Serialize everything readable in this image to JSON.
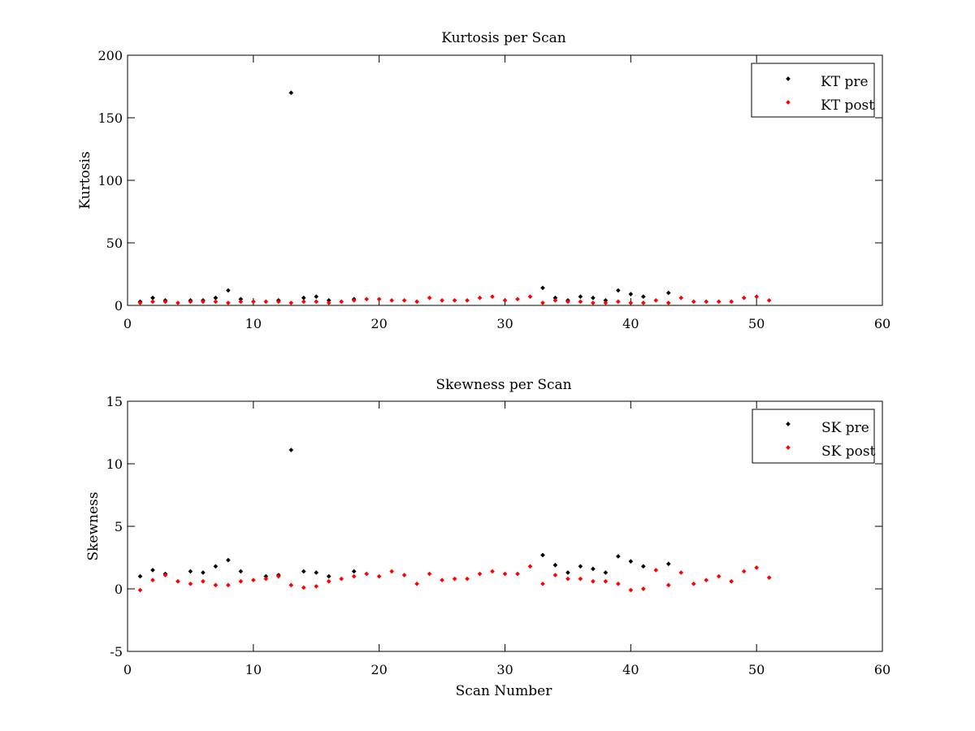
{
  "chart_data": [
    {
      "type": "scatter",
      "title": "Kurtosis per Scan",
      "xlabel": "",
      "ylabel": "Kurtosis",
      "xlim": [
        0,
        60
      ],
      "ylim": [
        0,
        200
      ],
      "xticks": [
        0,
        10,
        20,
        30,
        40,
        50,
        60
      ],
      "yticks": [
        0,
        50,
        100,
        150,
        200
      ],
      "grid": false,
      "legend_position": "top-right",
      "series": [
        {
          "name": "KT pre",
          "color": "#000000",
          "x": [
            1,
            2,
            3,
            5,
            6,
            7,
            8,
            9,
            12,
            13,
            14,
            15,
            16,
            18,
            33,
            34,
            35,
            36,
            37,
            38,
            39,
            40,
            41,
            43
          ],
          "y": [
            3,
            6,
            4,
            4,
            4,
            6,
            12,
            5,
            4,
            170,
            6,
            7,
            4,
            5,
            14,
            6,
            4,
            7,
            6,
            4,
            12,
            9,
            7,
            10
          ]
        },
        {
          "name": "KT post",
          "color": "#ff0000",
          "x": [
            1,
            2,
            3,
            4,
            5,
            6,
            7,
            8,
            9,
            10,
            11,
            12,
            13,
            14,
            15,
            16,
            17,
            18,
            19,
            20,
            21,
            22,
            23,
            24,
            25,
            26,
            27,
            28,
            29,
            30,
            31,
            32,
            33,
            34,
            35,
            36,
            37,
            38,
            39,
            40,
            41,
            42,
            43,
            44,
            45,
            46,
            47,
            48,
            49,
            50,
            51
          ],
          "y": [
            2,
            3,
            3,
            2,
            3,
            3,
            3,
            2,
            3,
            3,
            3,
            3,
            2,
            3,
            3,
            2,
            3,
            4,
            5,
            5,
            4,
            4,
            3,
            6,
            4,
            4,
            4,
            6,
            7,
            4,
            5,
            7,
            2,
            4,
            3,
            3,
            2,
            2,
            3,
            2,
            2,
            4,
            2,
            6,
            3,
            3,
            3,
            3,
            6,
            7,
            4
          ]
        }
      ]
    },
    {
      "type": "scatter",
      "title": "Skewness per Scan",
      "xlabel": "Scan Number",
      "ylabel": "Skewness",
      "xlim": [
        0,
        60
      ],
      "ylim": [
        -5,
        15
      ],
      "xticks": [
        0,
        10,
        20,
        30,
        40,
        50,
        60
      ],
      "yticks": [
        -5,
        0,
        5,
        10,
        15
      ],
      "grid": false,
      "legend_position": "top-right",
      "series": [
        {
          "name": "SK pre",
          "color": "#000000",
          "x": [
            1,
            2,
            3,
            5,
            6,
            7,
            8,
            9,
            11,
            12,
            13,
            14,
            15,
            16,
            18,
            33,
            34,
            35,
            36,
            37,
            38,
            39,
            40,
            41,
            43
          ],
          "y": [
            1.0,
            1.5,
            1.2,
            1.4,
            1.3,
            1.8,
            2.3,
            1.4,
            1.0,
            1.1,
            11.1,
            1.4,
            1.3,
            1.0,
            1.4,
            2.7,
            1.9,
            1.3,
            1.8,
            1.6,
            1.3,
            2.6,
            2.2,
            1.8,
            2.0
          ]
        },
        {
          "name": "SK post",
          "color": "#ff0000",
          "x": [
            1,
            2,
            3,
            4,
            5,
            6,
            7,
            8,
            9,
            10,
            11,
            12,
            13,
            14,
            15,
            16,
            17,
            18,
            19,
            20,
            21,
            22,
            23,
            24,
            25,
            26,
            27,
            28,
            29,
            30,
            31,
            32,
            33,
            34,
            35,
            36,
            37,
            38,
            39,
            40,
            41,
            42,
            43,
            44,
            45,
            46,
            47,
            48,
            49,
            50,
            51
          ],
          "y": [
            -0.1,
            0.7,
            1.1,
            0.6,
            0.4,
            0.6,
            0.3,
            0.3,
            0.6,
            0.7,
            0.8,
            1.0,
            0.3,
            0.1,
            0.2,
            0.6,
            0.8,
            1.0,
            1.2,
            1.0,
            1.4,
            1.1,
            0.4,
            1.2,
            0.7,
            0.8,
            0.8,
            1.2,
            1.4,
            1.2,
            1.2,
            1.8,
            0.4,
            1.1,
            0.8,
            0.8,
            0.6,
            0.6,
            0.4,
            -0.1,
            0.0,
            1.5,
            0.3,
            1.3,
            0.4,
            0.7,
            1.0,
            0.6,
            1.4,
            1.7,
            0.9
          ]
        }
      ]
    }
  ]
}
